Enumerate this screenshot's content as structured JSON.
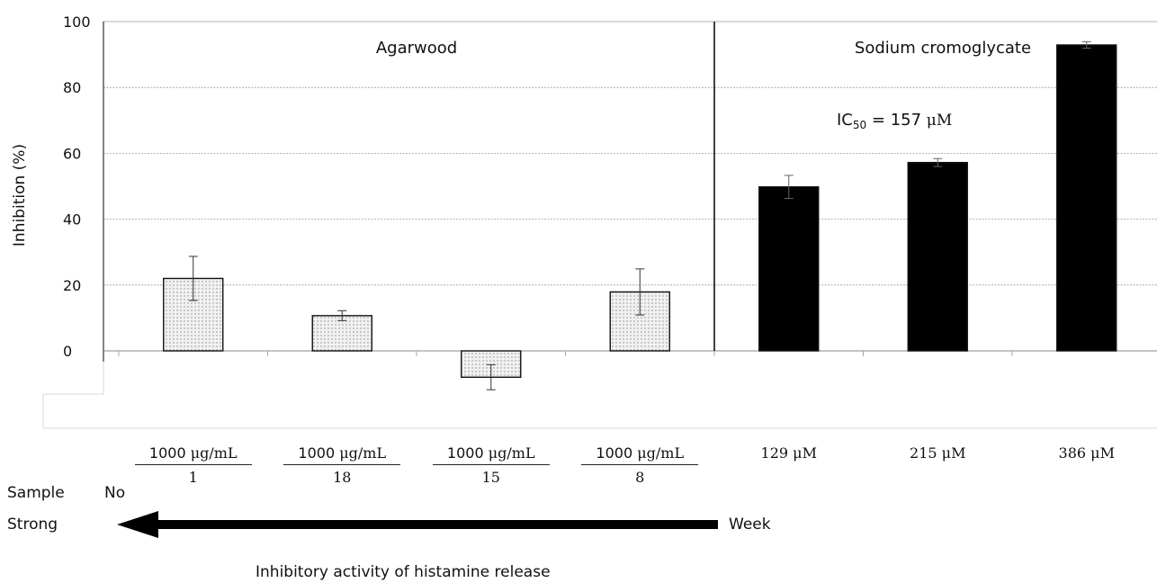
{
  "chart_data": {
    "type": "bar",
    "ylabel": "Inhibition (%)",
    "ylim": [
      -20,
      100
    ],
    "yticks": [
      "100",
      "80",
      "60",
      "40",
      "20",
      "0"
    ],
    "grid": true,
    "groups": [
      {
        "name": "Agarwood",
        "bars": [
          0,
          1,
          2,
          3
        ]
      },
      {
        "name": "Sodium cromoglycate",
        "bars": [
          4,
          5,
          6
        ]
      }
    ],
    "bars": [
      {
        "group": "Agarwood",
        "concentration": "1000 μg/mL",
        "sample_no": "1",
        "value": 22.0,
        "error": 6.7,
        "fill": "#e6e6e6"
      },
      {
        "group": "Agarwood",
        "concentration": "1000 μg/mL",
        "sample_no": "18",
        "value": 10.7,
        "error": 1.5,
        "fill": "#e6e6e6"
      },
      {
        "group": "Agarwood",
        "concentration": "1000 μg/mL",
        "sample_no": "15",
        "value": -8.0,
        "error": 3.8,
        "fill": "#e6e6e6"
      },
      {
        "group": "Agarwood",
        "concentration": "1000 μg/mL",
        "sample_no": "8",
        "value": 17.9,
        "error": 7.0,
        "fill": "#e6e6e6"
      },
      {
        "group": "Sodium cromoglycate",
        "concentration": "129 μM",
        "sample_no": "",
        "value": 49.8,
        "error": 3.5,
        "fill": "#000000"
      },
      {
        "group": "Sodium cromoglycate",
        "concentration": "215 μM",
        "sample_no": "",
        "value": 57.2,
        "error": 1.2,
        "fill": "#000000"
      },
      {
        "group": "Sodium cromoglycate",
        "concentration": "386 μM",
        "sample_no": "",
        "value": 92.9,
        "error": 1.0,
        "fill": "#000000"
      }
    ],
    "annotation": {
      "prefix": "IC",
      "sub": "50",
      "mid": " = 157 ",
      "unit": "μM"
    }
  },
  "legend_area": {
    "sample_label": "Sample",
    "no_label": "No",
    "strong_label": "Strong",
    "weak_label": "Week",
    "caption": "Inhibitory activity of histamine release"
  },
  "colors": {
    "grid": "#9a9a9a",
    "axis": "#333333",
    "hatched_fill": "#e6e6e6",
    "solid_fill": "#000000"
  }
}
